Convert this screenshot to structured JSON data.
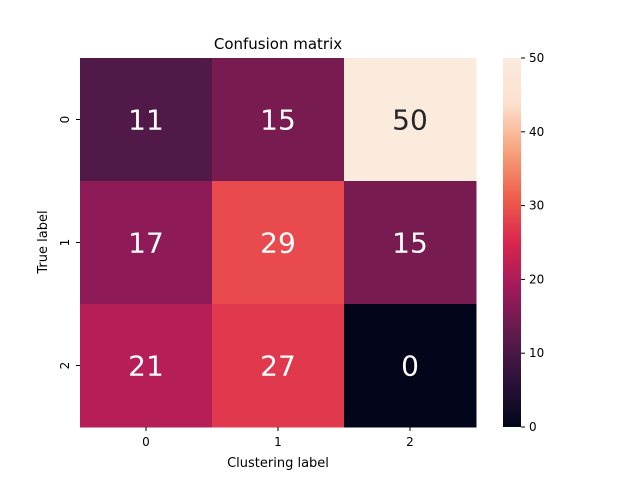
{
  "chart_data": {
    "type": "heatmap",
    "title": "Confusion matrix",
    "xlabel": "Clustering label",
    "ylabel": "True label",
    "x_categories": [
      "0",
      "1",
      "2"
    ],
    "y_categories": [
      "0",
      "1",
      "2"
    ],
    "values": [
      [
        11,
        15,
        50
      ],
      [
        17,
        29,
        15
      ],
      [
        21,
        27,
        0
      ]
    ],
    "colorbar": {
      "min": 0,
      "max": 50,
      "ticks": [
        0,
        10,
        20,
        30,
        40,
        50
      ],
      "tick_labels": [
        "0",
        "10",
        "20",
        "30",
        "40",
        "50"
      ],
      "colormap": "rocket"
    },
    "colormap_stops": [
      "#03051a",
      "#2b1239",
      "#5d1b4b",
      "#a11a5b",
      "#d9264e",
      "#f05f4c",
      "#f6a47c",
      "#fce0cd",
      "#faebdd"
    ],
    "grid": false
  }
}
